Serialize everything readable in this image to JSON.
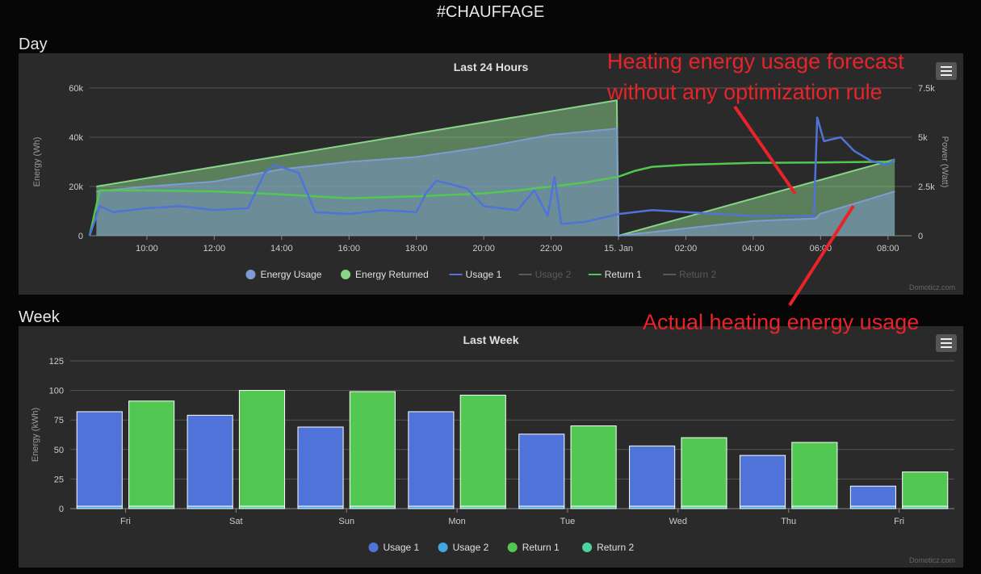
{
  "page": {
    "title": "#CHAUFFAGE"
  },
  "sections": {
    "day": "Day",
    "week": "Week"
  },
  "credits": "Domoticz.com",
  "colors": {
    "usage": "#4f73d8",
    "return": "#52c852",
    "usage2": "#44a5e0",
    "return2": "#4cd4a0",
    "energy_usage_area": "#7e9bd4",
    "energy_returned_area": "#8ad48a",
    "annotation": "#e8232a"
  },
  "annotations": {
    "forecast": [
      "Heating energy usage forecast",
      "without any optimization rule"
    ],
    "actual": "Actual heating energy usage"
  },
  "chart_data": [
    {
      "type": "line",
      "title": "Last 24 Hours",
      "ylabel": "Energy (Wh)",
      "y2label": "Power (Watt)",
      "ylim": [
        0,
        60000
      ],
      "y2lim": [
        0,
        7500
      ],
      "yticks": [
        "0",
        "20k",
        "40k",
        "60k"
      ],
      "y2ticks": [
        "0",
        "2.5k",
        "5k",
        "7.5k"
      ],
      "xlim": [
        8.3,
        32.7
      ],
      "xticks": [
        {
          "x": 10,
          "label": "10:00"
        },
        {
          "x": 12,
          "label": "12:00"
        },
        {
          "x": 14,
          "label": "14:00"
        },
        {
          "x": 16,
          "label": "16:00"
        },
        {
          "x": 18,
          "label": "18:00"
        },
        {
          "x": 20,
          "label": "20:00"
        },
        {
          "x": 22,
          "label": "22:00"
        },
        {
          "x": 24,
          "label": "15. Jan"
        },
        {
          "x": 26,
          "label": "02:00"
        },
        {
          "x": 28,
          "label": "04:00"
        },
        {
          "x": 30,
          "label": "06:00"
        },
        {
          "x": 32,
          "label": "08:00"
        }
      ],
      "grid": true,
      "legend_position": "bottom",
      "series": [
        {
          "name": "Energy Usage",
          "axis": "left",
          "kind": "area",
          "visible": true,
          "x": [
            8.5,
            10,
            12,
            14,
            16,
            18,
            20,
            22,
            23.95,
            24,
            26,
            28,
            29.85,
            30,
            31,
            32.2
          ],
          "y": [
            18000,
            20000,
            22000,
            27000,
            30000,
            32000,
            36000,
            41000,
            43500,
            0,
            3000,
            6000,
            7000,
            9000,
            13000,
            18000
          ]
        },
        {
          "name": "Energy Returned",
          "axis": "left",
          "kind": "area",
          "visible": true,
          "x": [
            8.5,
            23.95,
            24,
            32.2
          ],
          "y": [
            20000,
            55000,
            0,
            31000
          ]
        },
        {
          "name": "Usage 1",
          "axis": "right",
          "kind": "line",
          "visible": true,
          "x": [
            8.3,
            8.6,
            9,
            10,
            11,
            12,
            13,
            13.5,
            13.8,
            14.5,
            15,
            16,
            17,
            18,
            18.3,
            18.6,
            19.5,
            20,
            21,
            21.5,
            21.9,
            22.1,
            22.3,
            23,
            24,
            25,
            26,
            28,
            29.8,
            29.9,
            30.1,
            30.6,
            31,
            31.5,
            32,
            32.2
          ],
          "y": [
            0,
            1500,
            1200,
            1400,
            1500,
            1300,
            1400,
            3200,
            3600,
            3200,
            1200,
            1100,
            1300,
            1200,
            2200,
            2800,
            2400,
            1500,
            1300,
            2300,
            1000,
            3000,
            600,
            700,
            1100,
            1300,
            1200,
            1000,
            1000,
            6000,
            4800,
            5000,
            4300,
            3800,
            3600,
            3900
          ]
        },
        {
          "name": "Usage 2",
          "axis": "right",
          "kind": "line",
          "visible": false,
          "x": [],
          "y": []
        },
        {
          "name": "Return 1",
          "axis": "right",
          "kind": "line",
          "visible": true,
          "x": [
            8.3,
            8.6,
            10,
            12,
            14,
            15,
            16,
            18,
            20,
            21,
            22,
            23,
            24,
            24.5,
            25,
            26,
            28,
            30,
            31,
            32,
            32.2
          ],
          "y": [
            0,
            2300,
            2300,
            2250,
            2100,
            2000,
            1900,
            2000,
            2150,
            2300,
            2500,
            2700,
            3000,
            3300,
            3500,
            3600,
            3700,
            3720,
            3740,
            3760,
            3800
          ]
        },
        {
          "name": "Return 2",
          "axis": "right",
          "kind": "line",
          "visible": false,
          "x": [],
          "y": []
        }
      ]
    },
    {
      "type": "bar",
      "title": "Last Week",
      "ylabel": "Energy (kWh)",
      "ylim": [
        0,
        125
      ],
      "yticks": [
        "0",
        "25",
        "50",
        "75",
        "100",
        "125"
      ],
      "categories": [
        "Fri",
        "Sat",
        "Sun",
        "Mon",
        "Tue",
        "Wed",
        "Thu",
        "Fri"
      ],
      "grid": true,
      "legend_position": "bottom",
      "series": [
        {
          "name": "Usage 1",
          "values": [
            80,
            77,
            67,
            80,
            61,
            51,
            43,
            17
          ]
        },
        {
          "name": "Usage 2",
          "values": [
            2,
            2,
            2,
            2,
            2,
            2,
            2,
            2
          ]
        },
        {
          "name": "Return 1",
          "values": [
            89,
            98,
            97,
            94,
            68,
            58,
            54,
            29
          ]
        },
        {
          "name": "Return 2",
          "values": [
            2,
            2,
            2,
            2,
            2,
            2,
            2,
            2
          ]
        }
      ]
    }
  ]
}
